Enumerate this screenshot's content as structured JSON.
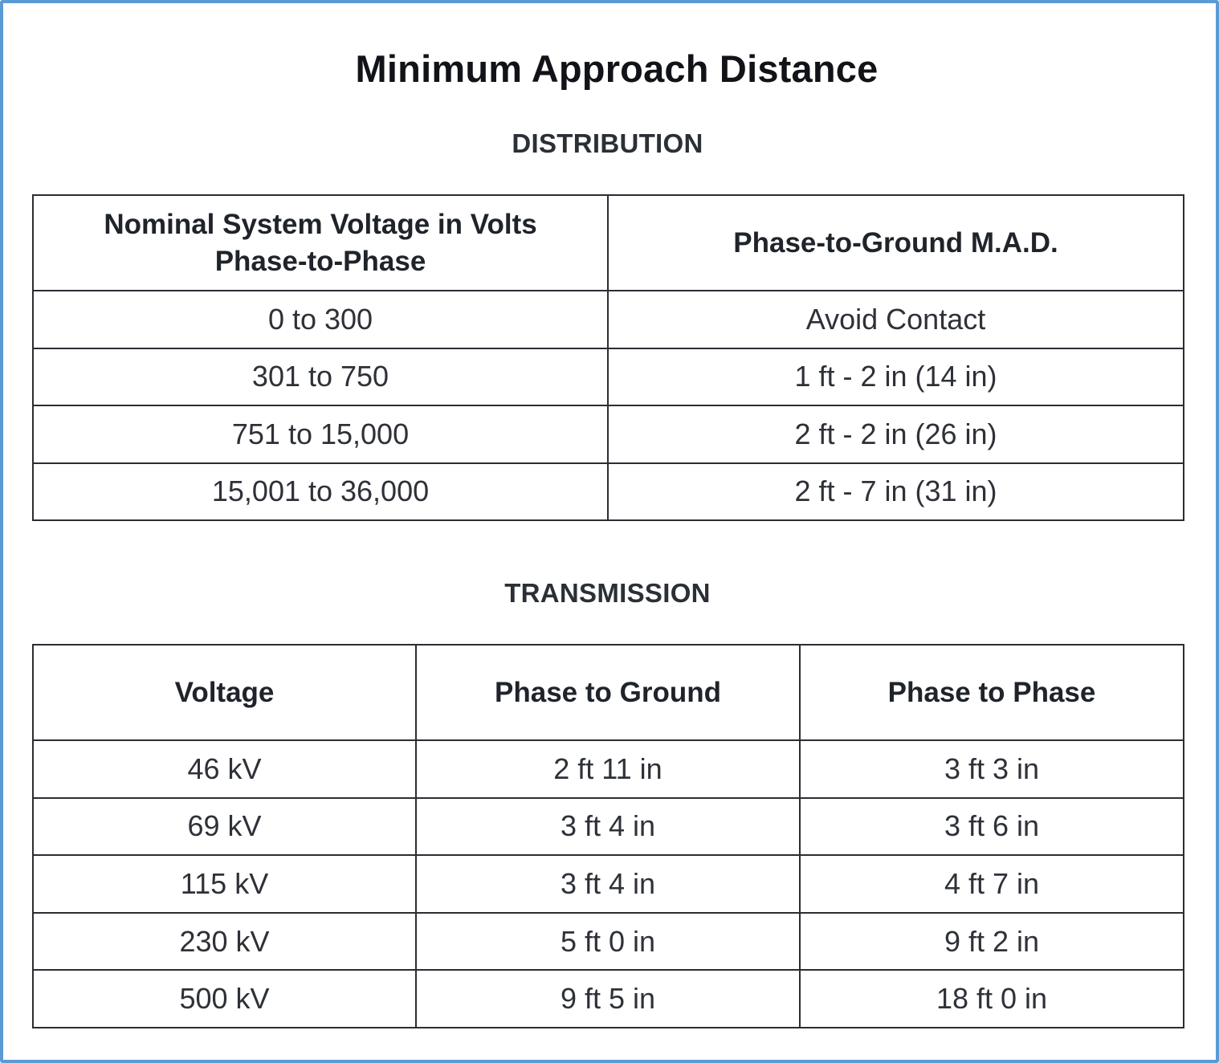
{
  "title": "Minimum Approach Distance",
  "distribution": {
    "heading": "DISTRIBUTION",
    "headers": [
      "Nominal System Voltage in Volts",
      "Phase-to-Phase",
      "Phase-to-Ground M.A.D."
    ],
    "rows": [
      [
        "0 to 300",
        "Avoid Contact"
      ],
      [
        "301 to 750",
        "1 ft - 2 in (14 in)"
      ],
      [
        "751 to 15,000",
        "2 ft - 2 in (26 in)"
      ],
      [
        "15,001 to 36,000",
        "2 ft - 7 in (31 in)"
      ]
    ]
  },
  "transmission": {
    "heading": "TRANSMISSION",
    "headers": [
      "Voltage",
      "Phase to Ground",
      "Phase to Phase"
    ],
    "rows": [
      [
        "46 kV",
        "2 ft 11 in",
        "3 ft 3 in"
      ],
      [
        "69 kV",
        "3 ft 4 in",
        "3 ft 6 in"
      ],
      [
        "115 kV",
        "3 ft 4 in",
        "4 ft 7 in"
      ],
      [
        "230 kV",
        "5 ft 0 in",
        "9 ft 2 in"
      ],
      [
        "500 kV",
        "9 ft 5 in",
        "18 ft 0 in"
      ]
    ]
  }
}
